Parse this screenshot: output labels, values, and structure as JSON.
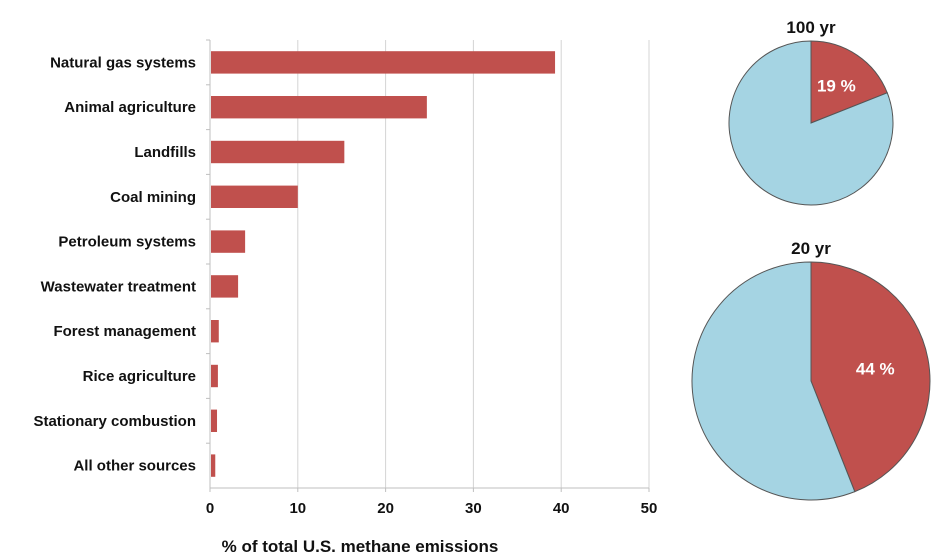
{
  "chart_data": [
    {
      "type": "bar",
      "orientation": "horizontal",
      "categories": [
        "Natural gas systems",
        "Animal agriculture",
        "Landfills",
        "Coal mining",
        "Petroleum systems",
        "Wastewater treatment",
        "Forest management",
        "Rice agriculture",
        "Stationary combustion",
        "All other sources"
      ],
      "values": [
        39.3,
        24.7,
        15.3,
        10.0,
        4.0,
        3.2,
        1.0,
        0.9,
        0.8,
        0.6
      ],
      "xlabel": "% of total U.S. methane emissions",
      "ylabel": "",
      "xlim": [
        0,
        50
      ],
      "xticks": [
        0,
        10,
        20,
        30,
        40,
        50
      ],
      "grid": "vertical",
      "bar_color": "#C0504D"
    },
    {
      "type": "pie",
      "title": "100 yr",
      "slices": [
        {
          "label": "19 %",
          "value": 19,
          "color": "#C0504D"
        },
        {
          "label": "",
          "value": 81,
          "color": "#A5D4E3"
        }
      ]
    },
    {
      "type": "pie",
      "title": "20 yr",
      "slices": [
        {
          "label": "44 %",
          "value": 44,
          "color": "#C0504D"
        },
        {
          "label": "",
          "value": 56,
          "color": "#A5D4E3"
        }
      ]
    }
  ]
}
